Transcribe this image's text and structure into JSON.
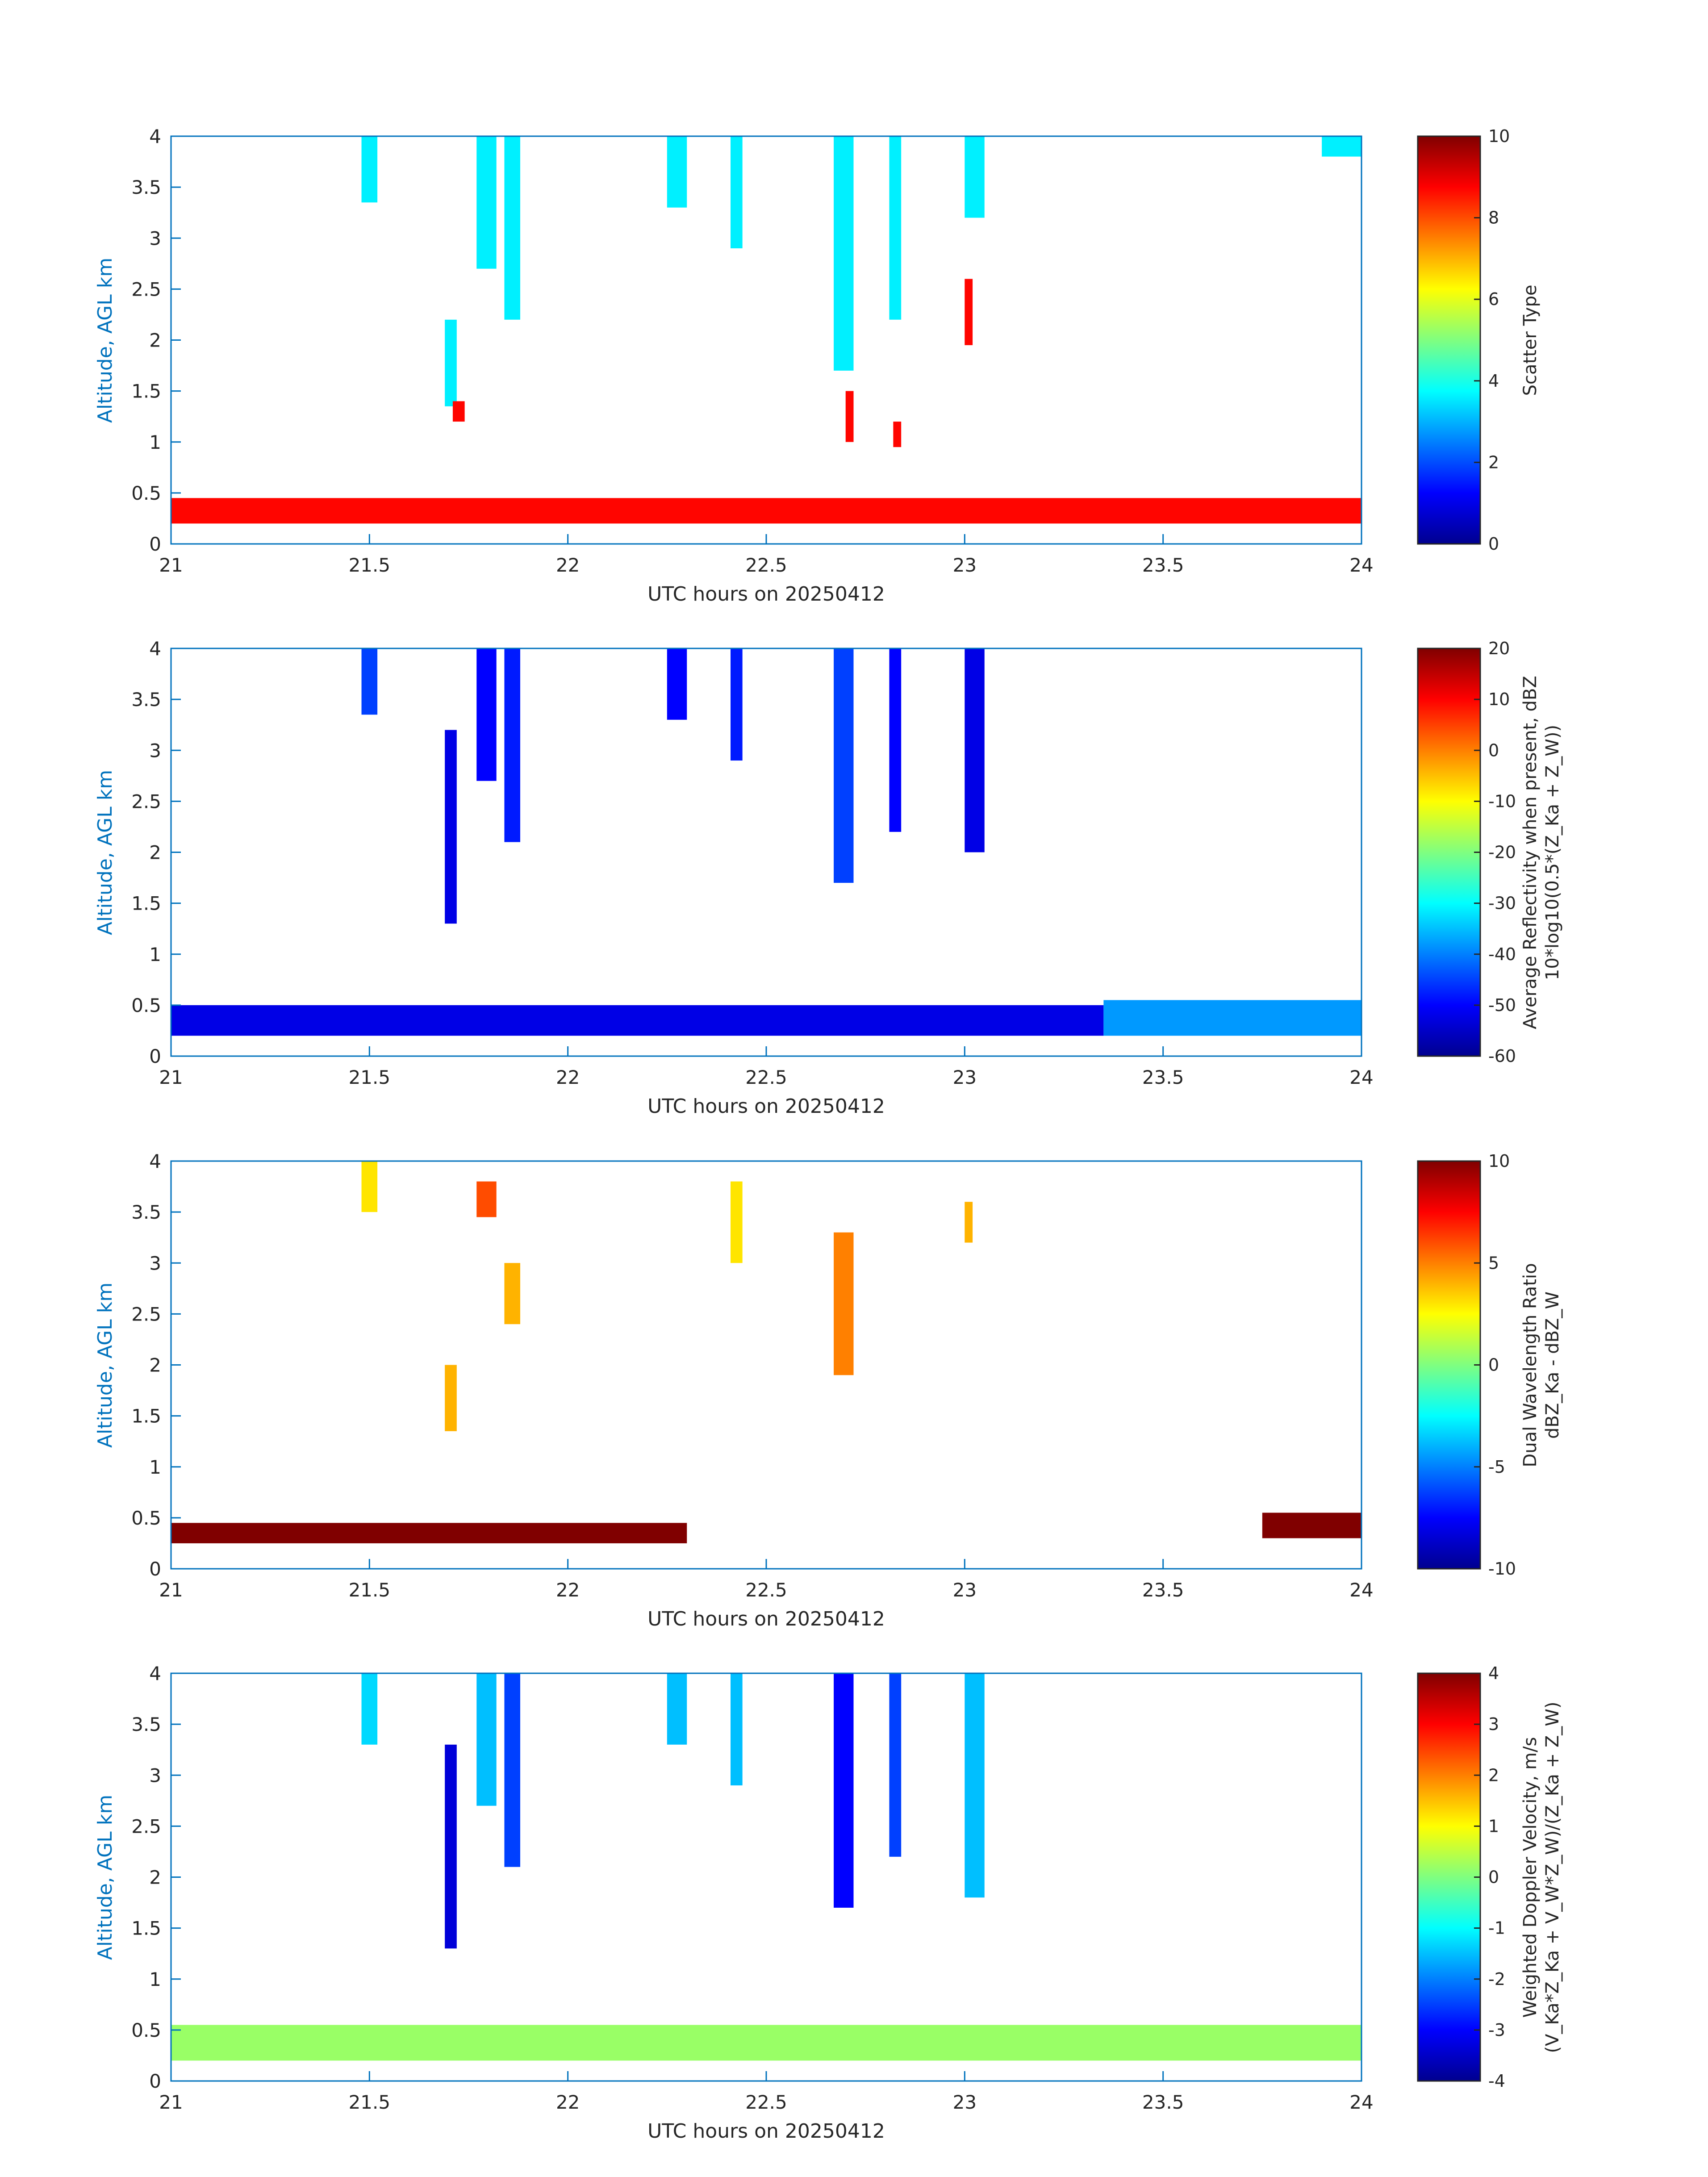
{
  "figure": {
    "date_label": "UTC hours on 20250412"
  },
  "colors": {
    "axis": "#0072BD",
    "text": "#262626",
    "plot_bg": "#ffffff"
  },
  "chart_data": [
    {
      "type": "heatmap",
      "panel": "scatter_type",
      "xlabel": "UTC hours on 20250412",
      "ylabel": "Altitude, AGL km",
      "xlim": [
        21,
        24
      ],
      "ylim": [
        0,
        4
      ],
      "xticks": [
        "21",
        "21.5",
        "22",
        "22.5",
        "23",
        "23.5",
        "24"
      ],
      "yticks": [
        "0",
        "0.5",
        "1",
        "1.5",
        "2",
        "2.5",
        "3",
        "3.5",
        "4"
      ],
      "colorbar": {
        "label": "Scatter Type",
        "label2": "",
        "range": [
          0,
          10
        ],
        "ticks": [
          "0",
          "2",
          "4",
          "6",
          "8",
          "10"
        ]
      },
      "layers": [
        {
          "x0": 21.0,
          "x1": 24.0,
          "y0": 0.2,
          "y1": 0.45,
          "value": 8.7
        },
        {
          "x0": 21.48,
          "x1": 21.52,
          "y0": 3.35,
          "y1": 4.0,
          "value": 3.6
        },
        {
          "x0": 21.69,
          "x1": 21.72,
          "y0": 1.35,
          "y1": 2.2,
          "value": 3.6
        },
        {
          "x0": 21.71,
          "x1": 21.74,
          "y0": 1.2,
          "y1": 1.4,
          "value": 8.7
        },
        {
          "x0": 21.77,
          "x1": 21.82,
          "y0": 2.7,
          "y1": 4.0,
          "value": 3.6
        },
        {
          "x0": 21.84,
          "x1": 21.88,
          "y0": 2.2,
          "y1": 4.0,
          "value": 3.6
        },
        {
          "x0": 22.25,
          "x1": 22.3,
          "y0": 3.3,
          "y1": 4.0,
          "value": 3.6
        },
        {
          "x0": 22.41,
          "x1": 22.44,
          "y0": 2.9,
          "y1": 4.0,
          "value": 3.6
        },
        {
          "x0": 22.67,
          "x1": 22.72,
          "y0": 1.7,
          "y1": 4.0,
          "value": 3.6
        },
        {
          "x0": 22.7,
          "x1": 22.72,
          "y0": 1.0,
          "y1": 1.5,
          "value": 8.7
        },
        {
          "x0": 22.81,
          "x1": 22.84,
          "y0": 2.2,
          "y1": 4.0,
          "value": 3.6
        },
        {
          "x0": 22.82,
          "x1": 22.84,
          "y0": 0.95,
          "y1": 1.2,
          "value": 8.7
        },
        {
          "x0": 23.0,
          "x1": 23.05,
          "y0": 3.2,
          "y1": 4.0,
          "value": 3.6
        },
        {
          "x0": 23.0,
          "x1": 23.02,
          "y0": 1.95,
          "y1": 2.6,
          "value": 8.7
        },
        {
          "x0": 23.9,
          "x1": 24.0,
          "y0": 3.8,
          "y1": 4.0,
          "value": 3.6
        }
      ]
    },
    {
      "type": "heatmap",
      "panel": "average_reflectivity",
      "xlabel": "UTC hours on 20250412",
      "ylabel": "Altitude, AGL km",
      "xlim": [
        21,
        24
      ],
      "ylim": [
        0,
        4
      ],
      "xticks": [
        "21",
        "21.5",
        "22",
        "22.5",
        "23",
        "23.5",
        "24"
      ],
      "yticks": [
        "0",
        "0.5",
        "1",
        "1.5",
        "2",
        "2.5",
        "3",
        "3.5",
        "4"
      ],
      "colorbar": {
        "label": "Average Reflectivity when present, dBZ",
        "label2": "10*log10(0.5*(Z_Ka + Z_W))",
        "range": [
          -60,
          20
        ],
        "ticks": [
          "-60",
          "-50",
          "-40",
          "-30",
          "-20",
          "-10",
          "0",
          "10",
          "20"
        ]
      },
      "layers": [
        {
          "x0": 21.0,
          "x1": 23.35,
          "y0": 0.2,
          "y1": 0.5,
          "value": -52
        },
        {
          "x0": 23.35,
          "x1": 24.0,
          "y0": 0.2,
          "y1": 0.55,
          "value": -38
        },
        {
          "x0": 21.48,
          "x1": 21.52,
          "y0": 3.35,
          "y1": 4.0,
          "value": -45
        },
        {
          "x0": 21.69,
          "x1": 21.72,
          "y0": 1.3,
          "y1": 3.2,
          "value": -52
        },
        {
          "x0": 21.77,
          "x1": 21.82,
          "y0": 2.7,
          "y1": 4.0,
          "value": -50
        },
        {
          "x0": 21.84,
          "x1": 21.88,
          "y0": 2.1,
          "y1": 4.0,
          "value": -48
        },
        {
          "x0": 22.25,
          "x1": 22.3,
          "y0": 3.3,
          "y1": 4.0,
          "value": -50
        },
        {
          "x0": 22.41,
          "x1": 22.44,
          "y0": 2.9,
          "y1": 4.0,
          "value": -48
        },
        {
          "x0": 22.67,
          "x1": 22.72,
          "y0": 1.7,
          "y1": 4.0,
          "value": -45
        },
        {
          "x0": 22.81,
          "x1": 22.84,
          "y0": 2.2,
          "y1": 4.0,
          "value": -50
        },
        {
          "x0": 23.0,
          "x1": 23.05,
          "y0": 2.0,
          "y1": 4.0,
          "value": -52
        }
      ]
    },
    {
      "type": "heatmap",
      "panel": "dual_wavelength_ratio",
      "xlabel": "UTC hours on 20250412",
      "ylabel": "Altitude, AGL km",
      "xlim": [
        21,
        24
      ],
      "ylim": [
        0,
        4
      ],
      "xticks": [
        "21",
        "21.5",
        "22",
        "22.5",
        "23",
        "23.5",
        "24"
      ],
      "yticks": [
        "0",
        "0.5",
        "1",
        "1.5",
        "2",
        "2.5",
        "3",
        "3.5",
        "4"
      ],
      "colorbar": {
        "label": "Dual Wavelength Ratio",
        "label2": "dBZ_Ka - dBZ_W",
        "range": [
          -10,
          10
        ],
        "ticks": [
          "-10",
          "-5",
          "0",
          "5",
          "10"
        ]
      },
      "layers": [
        {
          "x0": 21.0,
          "x1": 22.3,
          "y0": 0.25,
          "y1": 0.45,
          "value": 10
        },
        {
          "x0": 23.75,
          "x1": 24.0,
          "y0": 0.3,
          "y1": 0.55,
          "value": 10
        },
        {
          "x0": 21.48,
          "x1": 21.52,
          "y0": 3.5,
          "y1": 4.0,
          "value": 3
        },
        {
          "x0": 21.69,
          "x1": 21.72,
          "y0": 1.35,
          "y1": 2.0,
          "value": 4
        },
        {
          "x0": 21.77,
          "x1": 21.82,
          "y0": 3.45,
          "y1": 3.8,
          "value": 6
        },
        {
          "x0": 21.84,
          "x1": 21.88,
          "y0": 2.4,
          "y1": 3.0,
          "value": 4
        },
        {
          "x0": 22.41,
          "x1": 22.44,
          "y0": 3.0,
          "y1": 3.8,
          "value": 3
        },
        {
          "x0": 22.67,
          "x1": 22.72,
          "y0": 1.9,
          "y1": 3.3,
          "value": 5
        },
        {
          "x0": 23.0,
          "x1": 23.02,
          "y0": 3.2,
          "y1": 3.6,
          "value": 4
        }
      ]
    },
    {
      "type": "heatmap",
      "panel": "weighted_doppler_velocity",
      "xlabel": "UTC hours on 20250412",
      "ylabel": "Altitude, AGL km",
      "xlim": [
        21,
        24
      ],
      "ylim": [
        0,
        4
      ],
      "xticks": [
        "21",
        "21.5",
        "22",
        "22.5",
        "23",
        "23.5",
        "24"
      ],
      "yticks": [
        "0",
        "0.5",
        "1",
        "1.5",
        "2",
        "2.5",
        "3",
        "3.5",
        "4"
      ],
      "colorbar": {
        "label": "Weighted Doppler Velocity, m/s",
        "label2": "(V_Ka*Z_Ka + V_W*Z_W)/(Z_Ka + Z_W)",
        "range": [
          -4,
          4
        ],
        "ticks": [
          "-4",
          "-3",
          "-2",
          "-1",
          "0",
          "1",
          "2",
          "3",
          "4"
        ]
      },
      "layers": [
        {
          "x0": 21.0,
          "x1": 24.0,
          "y0": 0.2,
          "y1": 0.55,
          "value": 0.2
        },
        {
          "x0": 21.48,
          "x1": 21.52,
          "y0": 3.3,
          "y1": 4.0,
          "value": -1.3
        },
        {
          "x0": 21.69,
          "x1": 21.72,
          "y0": 1.3,
          "y1": 3.3,
          "value": -3.3
        },
        {
          "x0": 21.77,
          "x1": 21.82,
          "y0": 2.7,
          "y1": 4.0,
          "value": -1.5
        },
        {
          "x0": 21.84,
          "x1": 21.88,
          "y0": 2.1,
          "y1": 4.0,
          "value": -2.5
        },
        {
          "x0": 22.25,
          "x1": 22.3,
          "y0": 3.3,
          "y1": 4.0,
          "value": -1.5
        },
        {
          "x0": 22.41,
          "x1": 22.44,
          "y0": 2.9,
          "y1": 4.0,
          "value": -1.5
        },
        {
          "x0": 22.67,
          "x1": 22.72,
          "y0": 1.7,
          "y1": 4.0,
          "value": -3.0
        },
        {
          "x0": 22.81,
          "x1": 22.84,
          "y0": 2.2,
          "y1": 4.0,
          "value": -2.5
        },
        {
          "x0": 23.0,
          "x1": 23.05,
          "y0": 1.8,
          "y1": 4.0,
          "value": -1.5
        }
      ]
    }
  ]
}
